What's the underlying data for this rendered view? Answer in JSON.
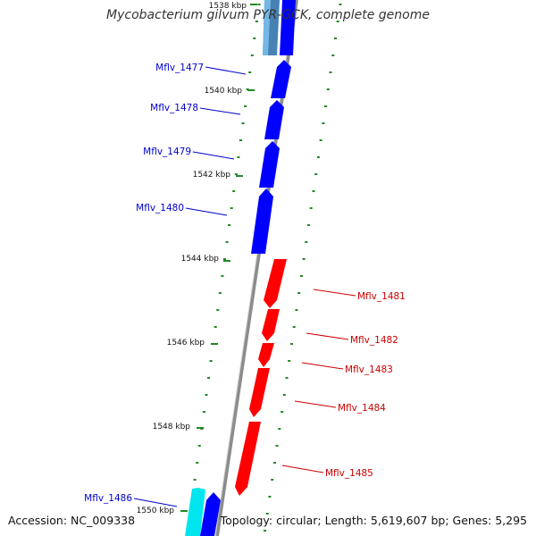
{
  "title": "Mycobacterium gilvum PYR-GCK, complete genome",
  "accession": "Accession: NC_009338",
  "topology": "Topology: circular; Length: 5,619,607 bp; Genes: 5,295",
  "colors": {
    "backbone": "#8c8c8c",
    "forward_gene": "#0000ff",
    "reverse_gene": "#ff0000",
    "forward_label": "#0000cc",
    "reverse_label": "#cc0000",
    "tick": "#228822",
    "cyan_gene": "#00e5ee",
    "steelblue_gene": "#4682b4"
  },
  "kbp_ticks": [
    {
      "label": "1538 kbp"
    },
    {
      "label": "1540 kbp"
    },
    {
      "label": "1542 kbp"
    },
    {
      "label": "1544 kbp"
    },
    {
      "label": "1546 kbp"
    },
    {
      "label": "1548 kbp"
    },
    {
      "label": "1550 kbp"
    }
  ],
  "forward_genes": [
    {
      "label": "Mflv_1477"
    },
    {
      "label": "Mflv_1478"
    },
    {
      "label": "Mflv_1479"
    },
    {
      "label": "Mflv_1480"
    },
    {
      "label": "Mflv_1486"
    }
  ],
  "reverse_genes": [
    {
      "label": "Mflv_1481"
    },
    {
      "label": "Mflv_1482"
    },
    {
      "label": "Mflv_1483"
    },
    {
      "label": "Mflv_1484"
    },
    {
      "label": "Mflv_1485"
    }
  ]
}
